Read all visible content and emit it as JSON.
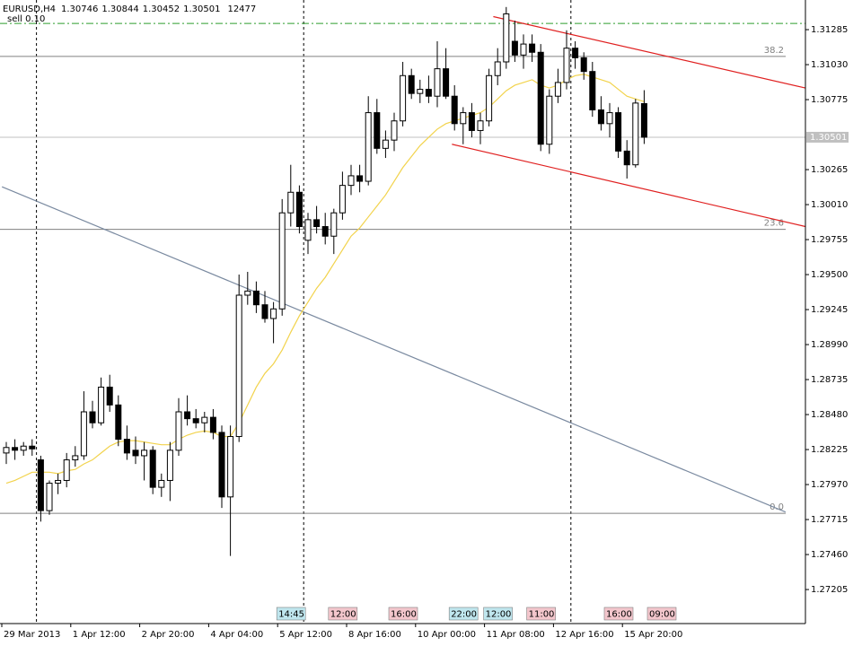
{
  "chart_data": {
    "type": "candlestick",
    "title": "EURUSD,H4",
    "volume": 12477,
    "order": "sell 0.10",
    "categories": [
      "29 Mar 2013",
      null,
      null,
      null,
      null,
      null,
      null,
      null,
      "1 Apr 12:00",
      null,
      null,
      null,
      null,
      null,
      null,
      null,
      "2 Apr 20:00",
      null,
      null,
      null,
      null,
      null,
      null,
      null,
      "4 Apr 04:00",
      null,
      null,
      null,
      null,
      null,
      null,
      null,
      "5 Apr 12:00",
      null,
      null,
      null,
      null,
      null,
      null,
      null,
      "8 Apr 16:00",
      null,
      null,
      null,
      null,
      null,
      null,
      null,
      "10 Apr 00:00",
      null,
      null,
      null,
      null,
      null,
      null,
      null,
      "11 Apr 08:00",
      null,
      null,
      null,
      null,
      null,
      null,
      null,
      "12 Apr 16:00",
      null,
      null,
      null,
      null,
      null,
      null,
      null,
      "15 Apr 20:00",
      null,
      null
    ],
    "open": [
      1.282,
      1.2824,
      1.2822,
      1.2825,
      1.2815,
      1.2778,
      1.2798,
      1.28,
      1.2815,
      1.2818,
      1.285,
      1.2842,
      1.2868,
      1.2855,
      1.283,
      1.2822,
      1.2818,
      1.2822,
      1.2795,
      1.28,
      1.2822,
      1.285,
      1.2845,
      1.2842,
      1.2846,
      1.2835,
      1.2788,
      1.2832,
      1.2935,
      1.2938,
      1.2928,
      1.2918,
      1.2925,
      1.2995,
      1.301,
      1.2975,
      1.299,
      1.2985,
      1.2978,
      1.2995,
      1.3015,
      1.3022,
      1.3018,
      1.3068,
      1.3042,
      1.3048,
      1.3062,
      1.3095,
      1.3082,
      1.3085,
      1.308,
      1.31,
      1.308,
      1.306,
      1.3068,
      1.3055,
      1.3062,
      1.3095,
      1.3105,
      1.312,
      1.311,
      1.3118,
      1.3112,
      1.3045,
      1.308,
      1.309,
      1.3115,
      1.3108,
      1.3098,
      1.307,
      1.306,
      1.3068,
      1.304,
      1.303,
      1.30746
    ],
    "high": [
      1.2828,
      1.283,
      1.2828,
      1.283,
      1.2818,
      1.28,
      1.2805,
      1.282,
      1.2825,
      1.2865,
      1.2858,
      1.2875,
      1.2877,
      1.2862,
      1.284,
      1.2832,
      1.2828,
      1.2825,
      1.2805,
      1.2828,
      1.286,
      1.2862,
      1.2852,
      1.285,
      1.2852,
      1.284,
      1.284,
      1.295,
      1.2952,
      1.2945,
      1.2938,
      1.293,
      1.3005,
      1.303,
      1.3015,
      1.2995,
      1.3,
      1.2995,
      1.2998,
      1.3025,
      1.303,
      1.303,
      1.308,
      1.3078,
      1.3055,
      1.3068,
      1.3105,
      1.31,
      1.3092,
      1.3095,
      1.312,
      1.3115,
      1.3088,
      1.3072,
      1.3075,
      1.3068,
      1.31,
      1.3115,
      1.3145,
      1.3135,
      1.3125,
      1.3125,
      1.3118,
      1.3085,
      1.31,
      1.3128,
      1.312,
      1.3112,
      1.3105,
      1.308,
      1.3075,
      1.3072,
      1.3048,
      1.3078,
      1.30844
    ],
    "low": [
      1.2812,
      1.2815,
      1.2818,
      1.2818,
      1.277,
      1.2775,
      1.279,
      1.2795,
      1.281,
      1.2815,
      1.2838,
      1.284,
      1.285,
      1.2825,
      1.2815,
      1.2812,
      1.28,
      1.279,
      1.2788,
      1.2785,
      1.2818,
      1.284,
      1.2838,
      1.2835,
      1.283,
      1.278,
      1.2745,
      1.2828,
      1.2928,
      1.2922,
      1.2915,
      1.29,
      1.292,
      1.2985,
      1.298,
      1.2965,
      1.298,
      1.2972,
      1.2965,
      1.299,
      1.3008,
      1.301,
      1.3015,
      1.3038,
      1.3035,
      1.304,
      1.3058,
      1.3078,
      1.3075,
      1.3075,
      1.3072,
      1.3078,
      1.3055,
      1.3045,
      1.305,
      1.3045,
      1.3058,
      1.3088,
      1.31,
      1.3105,
      1.31,
      1.3105,
      1.304,
      1.3038,
      1.3075,
      1.3085,
      1.31,
      1.3092,
      1.3065,
      1.3055,
      1.305,
      1.3035,
      1.302,
      1.3028,
      1.30452
    ],
    "close": [
      1.2824,
      1.2822,
      1.2825,
      1.2823,
      1.2778,
      1.2798,
      1.28,
      1.2815,
      1.2818,
      1.285,
      1.2842,
      1.2868,
      1.2855,
      1.283,
      1.282,
      1.2818,
      1.2822,
      1.2795,
      1.28,
      1.2822,
      1.285,
      1.2845,
      1.2842,
      1.2846,
      1.2835,
      1.2788,
      1.2832,
      1.2935,
      1.2938,
      1.2928,
      1.2918,
      1.2925,
      1.2995,
      1.301,
      1.2985,
      1.299,
      1.2985,
      1.2978,
      1.2995,
      1.3015,
      1.3022,
      1.3018,
      1.3068,
      1.3042,
      1.3048,
      1.3062,
      1.3095,
      1.3082,
      1.3085,
      1.308,
      1.31,
      1.308,
      1.306,
      1.3068,
      1.3055,
      1.3062,
      1.3095,
      1.3105,
      1.314,
      1.311,
      1.3118,
      1.3112,
      1.3045,
      1.308,
      1.309,
      1.3115,
      1.3108,
      1.3098,
      1.307,
      1.306,
      1.3068,
      1.304,
      1.303,
      1.3075,
      1.30501
    ],
    "ma": {
      "color": "#f2d34c",
      "values": [
        1.2798,
        1.28,
        1.2803,
        1.2806,
        1.2806,
        1.2806,
        1.2805,
        1.2807,
        1.2808,
        1.2812,
        1.2815,
        1.282,
        1.2825,
        1.2828,
        1.2829,
        1.2829,
        1.2828,
        1.2827,
        1.2826,
        1.2826,
        1.283,
        1.2833,
        1.2835,
        1.2836,
        1.2835,
        1.2832,
        1.2832,
        1.2842,
        1.2855,
        1.2868,
        1.2878,
        1.2885,
        1.2895,
        1.2908,
        1.292,
        1.293,
        1.294,
        1.2948,
        1.2958,
        1.2968,
        1.2978,
        1.2984,
        1.2992,
        1.3,
        1.3008,
        1.3018,
        1.3028,
        1.3036,
        1.3044,
        1.305,
        1.3056,
        1.306,
        1.3062,
        1.3064,
        1.3066,
        1.3068,
        1.3072,
        1.3078,
        1.3084,
        1.3088,
        1.309,
        1.3092,
        1.3088,
        1.3086,
        1.3088,
        1.3092,
        1.3095,
        1.3096,
        1.3094,
        1.3092,
        1.309,
        1.3085,
        1.308,
        1.3078,
        1.3076
      ]
    },
    "ylim": [
      1.26957,
      1.31501
    ],
    "yticks": [
      1.27205,
      {
        "value": 1.2746,
        "label": "1.27460"
      },
      1.27715,
      {
        "value": 1.2797,
        "label": "1.27970"
      },
      1.28225,
      {
        "value": 1.2848,
        "label": "1.28480"
      },
      1.28735,
      {
        "value": 1.2899,
        "label": "1.28990"
      },
      1.29245,
      {
        "value": 1.295,
        "label": "1.29500"
      },
      1.29755,
      {
        "value": 1.3001,
        "label": "1.30010"
      },
      1.30265,
      1.30775,
      {
        "value": 1.3103,
        "label": "1.31030"
      },
      1.31285
    ],
    "order_level": {
      "value": 1.3133,
      "color": "#2e9e2e"
    },
    "fib_levels": [
      {
        "label": "38.2",
        "value": 1.3109
      },
      {
        "label": "23.6",
        "value": 1.2983
      },
      {
        "label": "0.0",
        "value": 1.2776
      }
    ],
    "trendlines": [
      {
        "color": "#e02020",
        "x": [
          56.5,
          92.7
        ],
        "y": [
          1.3138,
          1.3086
        ]
      },
      {
        "color": "#e02020",
        "x": [
          51.7,
          92.7
        ],
        "y": [
          1.3045,
          1.2985
        ]
      },
      {
        "color": "#7a8aa0",
        "x": [
          -0.5,
          90.4
        ],
        "y": [
          1.3014,
          1.2777
        ]
      }
    ],
    "trade_tags": [
      {
        "text": "14:45",
        "x": 32,
        "color": "#bfe6ee"
      },
      {
        "text": "12:00",
        "x": 38,
        "color": "#f3c6cc"
      },
      {
        "text": "16:00",
        "x": 45,
        "color": "#f3c6cc"
      },
      {
        "text": "22:00",
        "x": 52,
        "color": "#bfe6ee"
      },
      {
        "text": "12:00",
        "x": 56,
        "color": "#bfe6ee"
      },
      {
        "text": "11:00",
        "x": 61,
        "color": "#f3c6cc"
      },
      {
        "text": "16:00",
        "x": 70,
        "color": "#f3c6cc"
      },
      {
        "text": "09:00",
        "x": 75,
        "color": "#f3c6cc"
      }
    ]
  }
}
